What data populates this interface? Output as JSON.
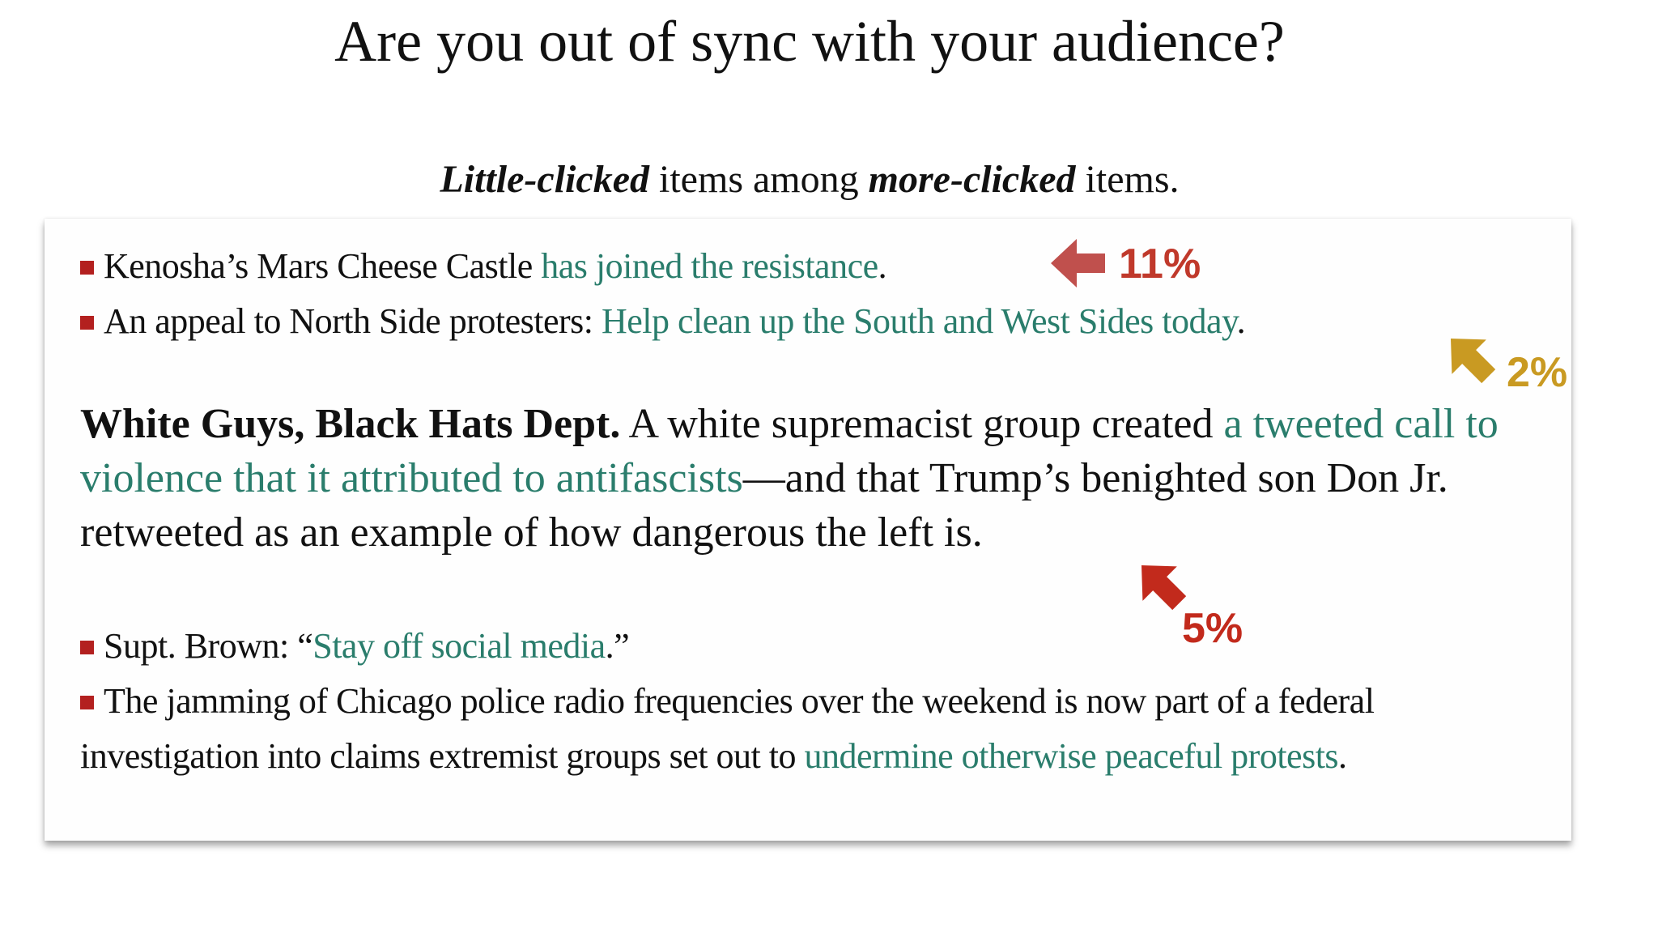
{
  "title": "Are you out of sync with your audience?",
  "subtitle": [
    {
      "text": "Little-clicked",
      "style": "em"
    },
    {
      "text": " items among "
    },
    {
      "text": "more-clicked",
      "style": "em"
    },
    {
      "text": " items."
    }
  ],
  "items": [
    {
      "segments": [
        {
          "text": "Kenosha’s Mars Cheese Castle "
        },
        {
          "text": "has joined the resistance",
          "style": "link"
        },
        {
          "text": "."
        }
      ]
    },
    {
      "segments": [
        {
          "text": "An appeal to North Side protesters: "
        },
        {
          "text": "Help clean up the South and West Sides today",
          "style": "link"
        },
        {
          "text": "."
        }
      ]
    }
  ],
  "paragraph": {
    "segments": [
      {
        "text": "White Guys, Black Hats Dept.",
        "style": "bold"
      },
      {
        "text": " A white supremacist group created "
      },
      {
        "text": "a tweeted call to violence that it attributed to antifascists",
        "style": "link"
      },
      {
        "text": "—and that Trump’s benighted son Don Jr. retweeted as an example of how dangerous the left is."
      }
    ]
  },
  "items2": [
    {
      "segments": [
        {
          "text": "Supt. Brown: “"
        },
        {
          "text": "Stay off social media",
          "style": "link"
        },
        {
          "text": ".”"
        }
      ]
    },
    {
      "segments": [
        {
          "text": "The jamming of Chicago police radio frequencies over the weekend is now part of a federal investigation into claims extremist groups set out to "
        },
        {
          "text": "undermine otherwise peaceful protests",
          "style": "link"
        },
        {
          "text": "."
        }
      ]
    }
  ],
  "annotations": [
    {
      "label": "11%",
      "color": "#c0392b"
    },
    {
      "label": "2%",
      "color": "#c99a22"
    },
    {
      "label": "5%",
      "color": "#c22a1c"
    }
  ]
}
